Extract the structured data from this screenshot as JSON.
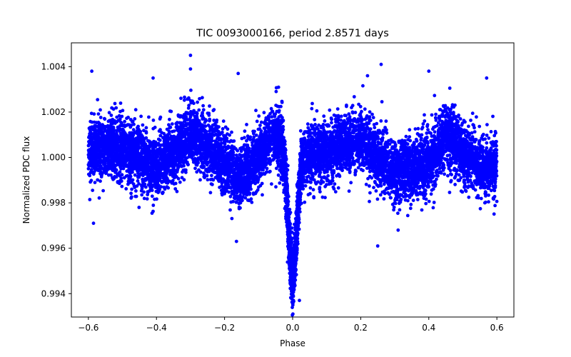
{
  "chart_data": {
    "type": "scatter",
    "title": "TIC 0093000166, period 2.8571 days",
    "xlabel": "Phase",
    "ylabel": "Normalized PDC flux",
    "xlim": [
      -0.65,
      0.65
    ],
    "ylim": [
      0.99297,
      1.00505
    ],
    "xticks": [
      -0.6,
      -0.4,
      -0.2,
      0.0,
      0.2,
      0.4,
      0.6
    ],
    "xtick_labels": [
      "−0.6",
      "−0.4",
      "−0.2",
      "0.0",
      "0.2",
      "0.4",
      "0.6"
    ],
    "yticks": [
      0.994,
      0.996,
      0.998,
      1.0,
      1.002,
      1.004
    ],
    "ytick_labels": [
      "0.994",
      "0.996",
      "0.998",
      "1.000",
      "1.002",
      "1.004"
    ],
    "grid": false,
    "marker_color": "#0000ff",
    "phase_range": [
      -0.6,
      0.6
    ],
    "baseline_flux": 1.0,
    "scatter_sigma": 0.0009,
    "eclipse": {
      "center_phase": 0.0,
      "depth": 0.0053,
      "width_phase": 0.012,
      "min_flux": 0.9935
    },
    "modulation_envelope": [
      {
        "phase": -0.6,
        "flux": 1.0004
      },
      {
        "phase": -0.5,
        "flux": 1.0005
      },
      {
        "phase": -0.45,
        "flux": 1.0
      },
      {
        "phase": -0.4,
        "flux": 0.9995
      },
      {
        "phase": -0.3,
        "flux": 1.001
      },
      {
        "phase": -0.2,
        "flux": 0.9998
      },
      {
        "phase": -0.15,
        "flux": 0.999
      },
      {
        "phase": -0.05,
        "flux": 1.001
      },
      {
        "phase": 0.0,
        "flux": 1.0
      },
      {
        "phase": 0.05,
        "flux": 1.0
      },
      {
        "phase": 0.2,
        "flux": 1.0008
      },
      {
        "phase": 0.3,
        "flux": 0.9993
      },
      {
        "phase": 0.4,
        "flux": 0.9997
      },
      {
        "phase": 0.45,
        "flux": 1.001
      },
      {
        "phase": 0.55,
        "flux": 0.9995
      },
      {
        "phase": 0.6,
        "flux": 0.9997
      }
    ],
    "outliers": [
      {
        "x": -0.59,
        "y": 1.0038
      },
      {
        "x": -0.585,
        "y": 0.9971
      },
      {
        "x": -0.3,
        "y": 1.0045
      },
      {
        "x": -0.3,
        "y": 1.0039
      },
      {
        "x": -0.16,
        "y": 1.0037
      },
      {
        "x": -0.41,
        "y": 1.0035
      },
      {
        "x": 0.26,
        "y": 1.0041
      },
      {
        "x": 0.22,
        "y": 1.0036
      },
      {
        "x": 0.4,
        "y": 1.0038
      },
      {
        "x": 0.57,
        "y": 1.0035
      },
      {
        "x": -0.165,
        "y": 0.9963
      },
      {
        "x": 0.31,
        "y": 0.9968
      },
      {
        "x": 0.02,
        "y": 0.9937
      },
      {
        "x": 0.25,
        "y": 0.9961
      }
    ],
    "n_points": 9000,
    "seed": 93000166
  }
}
